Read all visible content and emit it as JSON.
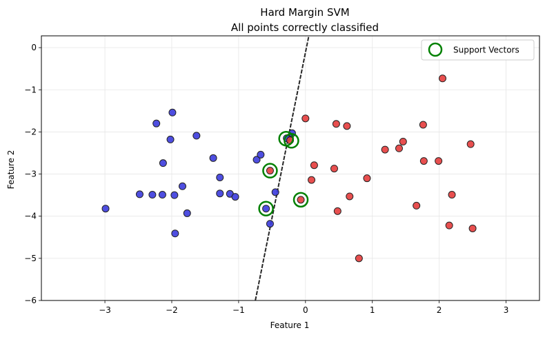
{
  "chart_data": {
    "type": "scatter",
    "title": "Hard Margin SVM",
    "subtitle": "All points correctly classified",
    "xlabel": "Feature 1",
    "ylabel": "Feature 2",
    "xlim": [
      -3.95,
      3.5
    ],
    "ylim": [
      -6.0,
      0.28
    ],
    "xticks": [
      -3,
      -2,
      -1,
      0,
      1,
      2,
      3
    ],
    "yticks": [
      0,
      -1,
      -2,
      -3,
      -4,
      -5,
      -6
    ],
    "xtick_labels": [
      "−3",
      "−2",
      "−1",
      "0",
      "1",
      "2",
      "3"
    ],
    "ytick_labels": [
      "0",
      "−1",
      "−2",
      "−3",
      "−4",
      "−5",
      "−6"
    ],
    "grid": true,
    "legend_position": "top-right",
    "legend_label": "Support Vectors",
    "colors": {
      "class_a": "#3b3bdd",
      "class_b": "#e63c3c",
      "support_vector": "#008000",
      "boundary": "#000000"
    },
    "series": [
      {
        "color": "#3b3bdd",
        "points": [
          [
            -2.99,
            -3.82
          ],
          [
            -2.48,
            -3.48
          ],
          [
            -2.29,
            -3.49
          ],
          [
            -2.14,
            -3.49
          ],
          [
            -2.23,
            -1.8
          ],
          [
            -2.13,
            -2.74
          ],
          [
            -2.02,
            -2.18
          ],
          [
            -1.99,
            -1.54
          ],
          [
            -1.96,
            -3.5
          ],
          [
            -1.95,
            -4.41
          ],
          [
            -1.84,
            -3.29
          ],
          [
            -1.77,
            -3.93
          ],
          [
            -1.63,
            -2.09
          ],
          [
            -1.38,
            -2.62
          ],
          [
            -1.28,
            -3.08
          ],
          [
            -1.28,
            -3.46
          ],
          [
            -1.13,
            -3.47
          ],
          [
            -1.05,
            -3.54
          ],
          [
            -0.73,
            -2.66
          ],
          [
            -0.67,
            -2.54
          ],
          [
            -0.59,
            -3.82
          ],
          [
            -0.53,
            -4.18
          ],
          [
            -0.45,
            -3.43
          ],
          [
            -0.28,
            -2.15
          ],
          [
            -0.2,
            -2.03
          ]
        ]
      },
      {
        "color": "#e63c3c",
        "points": [
          [
            -0.53,
            -2.92
          ],
          [
            -0.23,
            -2.2
          ],
          [
            -0.07,
            -3.61
          ],
          [
            0.0,
            -1.68
          ],
          [
            0.09,
            -3.14
          ],
          [
            0.13,
            -2.79
          ],
          [
            0.43,
            -2.87
          ],
          [
            0.46,
            -1.81
          ],
          [
            0.48,
            -3.88
          ],
          [
            0.62,
            -1.86
          ],
          [
            0.66,
            -3.53
          ],
          [
            0.8,
            -5.0
          ],
          [
            0.92,
            -3.1
          ],
          [
            1.19,
            -2.42
          ],
          [
            1.4,
            -2.39
          ],
          [
            1.46,
            -2.23
          ],
          [
            1.66,
            -3.75
          ],
          [
            1.76,
            -1.83
          ],
          [
            1.77,
            -2.69
          ],
          [
            1.99,
            -2.69
          ],
          [
            2.05,
            -0.73
          ],
          [
            2.15,
            -4.22
          ],
          [
            2.19,
            -3.49
          ],
          [
            2.47,
            -2.29
          ],
          [
            2.5,
            -4.29
          ]
        ]
      }
    ],
    "support_vectors": [
      [
        -0.29,
        -2.16
      ],
      [
        -0.21,
        -2.21
      ],
      [
        -0.53,
        -2.92
      ],
      [
        -0.59,
        -3.82
      ],
      [
        -0.07,
        -3.61
      ]
    ],
    "decision_boundary": [
      [
        -0.75,
        -6.0
      ],
      [
        0.05,
        0.28
      ]
    ]
  }
}
